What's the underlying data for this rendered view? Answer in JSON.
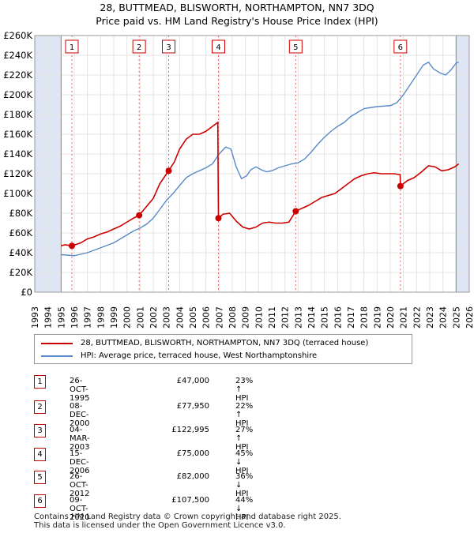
{
  "title_line1": "28, BUTTMEAD, BLISWORTH, NORTHAMPTON, NN7 3DQ",
  "title_line2": "Price paid vs. HM Land Registry's House Price Index (HPI)",
  "colors": {
    "property": "#cc0000",
    "hpi": "#5a8ac6",
    "shade": "#dfe6f3",
    "grid": "#e4e4e4"
  },
  "chart_data": {
    "type": "line",
    "xlim": [
      1993,
      2026
    ],
    "ylim": [
      0,
      260000
    ],
    "y_ticks": [
      0,
      20000,
      40000,
      60000,
      80000,
      100000,
      120000,
      140000,
      160000,
      180000,
      200000,
      220000,
      240000,
      260000
    ],
    "y_tick_labels": [
      "£0",
      "£20K",
      "£40K",
      "£60K",
      "£80K",
      "£100K",
      "£120K",
      "£140K",
      "£160K",
      "£180K",
      "£200K",
      "£220K",
      "£240K",
      "£260K"
    ],
    "x_ticks": [
      "1993",
      "1994",
      "1995",
      "1996",
      "1997",
      "1998",
      "1999",
      "2000",
      "2001",
      "2002",
      "2003",
      "2004",
      "2005",
      "2006",
      "2007",
      "2008",
      "2009",
      "2010",
      "2011",
      "2012",
      "2013",
      "2014",
      "2015",
      "2016",
      "2017",
      "2018",
      "2019",
      "2020",
      "2021",
      "2022",
      "2023",
      "2024",
      "2025",
      "2026"
    ],
    "shaded_ranges": [
      [
        1993,
        1995.0
      ],
      [
        2025.0,
        2026
      ]
    ],
    "series": [
      {
        "name": "28, BUTTMEAD, BLISWORTH, NORTHAMPTON, NN7 3DQ (terraced house)",
        "x": [
          1995.0,
          1995.3,
          1995.82,
          1996.5,
          1997.0,
          1997.5,
          1998.0,
          1998.5,
          1999.0,
          1999.5,
          2000.0,
          2000.5,
          2000.93,
          2001.5,
          2002.0,
          2002.5,
          2003.17,
          2003.6,
          2004.0,
          2004.5,
          2005.0,
          2005.5,
          2006.0,
          2006.5,
          2006.9,
          2006.95,
          2007.3,
          2007.8,
          2008.3,
          2008.8,
          2009.3,
          2009.8,
          2010.3,
          2010.8,
          2011.3,
          2011.8,
          2012.3,
          2012.82,
          2013.3,
          2013.8,
          2014.3,
          2014.8,
          2015.3,
          2015.8,
          2016.3,
          2016.8,
          2017.3,
          2017.8,
          2018.3,
          2018.8,
          2019.3,
          2019.8,
          2020.3,
          2020.75,
          2020.77,
          2021.3,
          2021.8,
          2022.3,
          2022.9,
          2023.4,
          2023.9,
          2024.4,
          2024.9,
          2025.2
        ],
        "values": [
          47000,
          48000,
          47000,
          50000,
          54000,
          56000,
          59000,
          61000,
          64000,
          67000,
          71000,
          75000,
          77950,
          87000,
          95000,
          110000,
          122995,
          132000,
          145000,
          155000,
          160000,
          160000,
          163000,
          168000,
          172000,
          75000,
          79000,
          80000,
          72000,
          66000,
          64000,
          66000,
          70000,
          71000,
          70000,
          70000,
          71000,
          82000,
          85000,
          88000,
          92000,
          96000,
          98000,
          100000,
          105000,
          110000,
          115000,
          118000,
          120000,
          121000,
          120000,
          120000,
          120000,
          119000,
          107500,
          113000,
          116000,
          121000,
          128000,
          127000,
          123000,
          124000,
          127000,
          130000
        ]
      },
      {
        "name": "HPI: Average price, terraced house, West Northamptonshire",
        "x": [
          1995.0,
          1995.5,
          1996.0,
          1996.5,
          1997.0,
          1997.5,
          1998.0,
          1998.5,
          1999.0,
          1999.5,
          2000.0,
          2000.5,
          2001.0,
          2001.5,
          2002.0,
          2002.5,
          2003.0,
          2003.5,
          2004.0,
          2004.5,
          2005.0,
          2005.5,
          2006.0,
          2006.5,
          2007.0,
          2007.5,
          2007.9,
          2008.3,
          2008.7,
          2009.1,
          2009.4,
          2009.8,
          2010.2,
          2010.6,
          2011.0,
          2011.5,
          2012.0,
          2012.5,
          2013.0,
          2013.5,
          2014.0,
          2014.5,
          2015.0,
          2015.5,
          2016.0,
          2016.5,
          2017.0,
          2017.5,
          2018.0,
          2018.5,
          2019.0,
          2019.5,
          2020.0,
          2020.5,
          2021.0,
          2021.5,
          2022.0,
          2022.5,
          2022.9,
          2023.3,
          2023.8,
          2024.2,
          2024.6,
          2025.0,
          2025.2
        ],
        "values": [
          38000,
          37500,
          37000,
          38500,
          40000,
          42500,
          45000,
          47500,
          50000,
          54000,
          58000,
          62000,
          65000,
          69000,
          75000,
          84000,
          93000,
          100000,
          108000,
          116000,
          120000,
          123000,
          126000,
          130000,
          140000,
          147000,
          145000,
          127000,
          115000,
          118000,
          124000,
          127000,
          124000,
          122000,
          123000,
          126000,
          128000,
          130000,
          131000,
          135000,
          142000,
          150000,
          157000,
          163000,
          168000,
          172000,
          178000,
          182000,
          186000,
          187000,
          188000,
          188500,
          189000,
          192000,
          200000,
          210000,
          220000,
          230000,
          233000,
          226000,
          222000,
          220000,
          225000,
          232000,
          233000
        ]
      }
    ],
    "sales": [
      {
        "n": "1",
        "x": 1995.82,
        "y": 47000
      },
      {
        "n": "2",
        "x": 2000.93,
        "y": 77950
      },
      {
        "n": "3",
        "x": 2003.17,
        "y": 122995
      },
      {
        "n": "4",
        "x": 2006.95,
        "y": 75000
      },
      {
        "n": "5",
        "x": 2012.82,
        "y": 82000
      },
      {
        "n": "6",
        "x": 2020.77,
        "y": 107500
      }
    ]
  },
  "legend": {
    "property_label": "28, BUTTMEAD, BLISWORTH, NORTHAMPTON, NN7 3DQ (terraced house)",
    "hpi_label": "HPI: Average price, terraced house, West Northamptonshire"
  },
  "transactions": [
    {
      "num": "1",
      "date": "26-OCT-1995",
      "price": "£47,000",
      "hpi": "23% ↑ HPI"
    },
    {
      "num": "2",
      "date": "08-DEC-2000",
      "price": "£77,950",
      "hpi": "22% ↑ HPI"
    },
    {
      "num": "3",
      "date": "04-MAR-2003",
      "price": "£122,995",
      "hpi": "27% ↑ HPI"
    },
    {
      "num": "4",
      "date": "15-DEC-2006",
      "price": "£75,000",
      "hpi": "45% ↓ HPI"
    },
    {
      "num": "5",
      "date": "26-OCT-2012",
      "price": "£82,000",
      "hpi": "36% ↓ HPI"
    },
    {
      "num": "6",
      "date": "09-OCT-2020",
      "price": "£107,500",
      "hpi": "44% ↓ HPI"
    }
  ],
  "footer": {
    "line1": "Contains HM Land Registry data © Crown copyright and database right 2025.",
    "line2": "This data is licensed under the Open Government Licence v3.0."
  }
}
